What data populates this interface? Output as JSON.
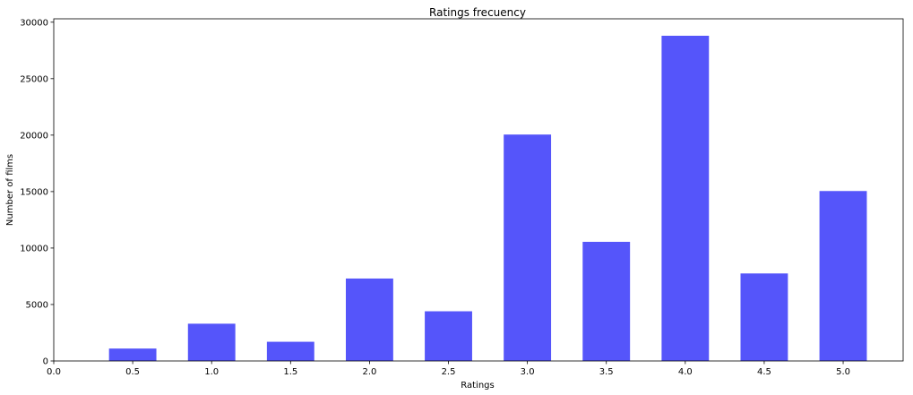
{
  "chart_data": {
    "type": "bar",
    "title": "Ratings frecuency",
    "xlabel": "Ratings",
    "ylabel": "Number of films",
    "x": [
      0.5,
      1.0,
      1.5,
      2.0,
      2.5,
      3.0,
      3.5,
      4.0,
      4.5,
      5.0
    ],
    "values": [
      1100,
      3300,
      1700,
      7300,
      4400,
      20050,
      10550,
      28800,
      7750,
      15050
    ],
    "bar_width": 0.3,
    "xlim": [
      0.0,
      5.38
    ],
    "ylim": [
      0,
      30300
    ],
    "x_ticks": [
      0.0,
      0.5,
      1.0,
      1.5,
      2.0,
      2.5,
      3.0,
      3.5,
      4.0,
      4.5,
      5.0
    ],
    "x_tick_labels": [
      "0.0",
      "0.5",
      "1.0",
      "1.5",
      "2.0",
      "2.5",
      "3.0",
      "3.5",
      "4.0",
      "4.5",
      "5.0"
    ],
    "y_ticks": [
      0,
      5000,
      10000,
      15000,
      20000,
      25000,
      30000
    ],
    "y_tick_labels": [
      "0",
      "5000",
      "10000",
      "15000",
      "20000",
      "25000",
      "30000"
    ],
    "bar_color": "#5555fa",
    "grid": false,
    "legend": "none"
  }
}
